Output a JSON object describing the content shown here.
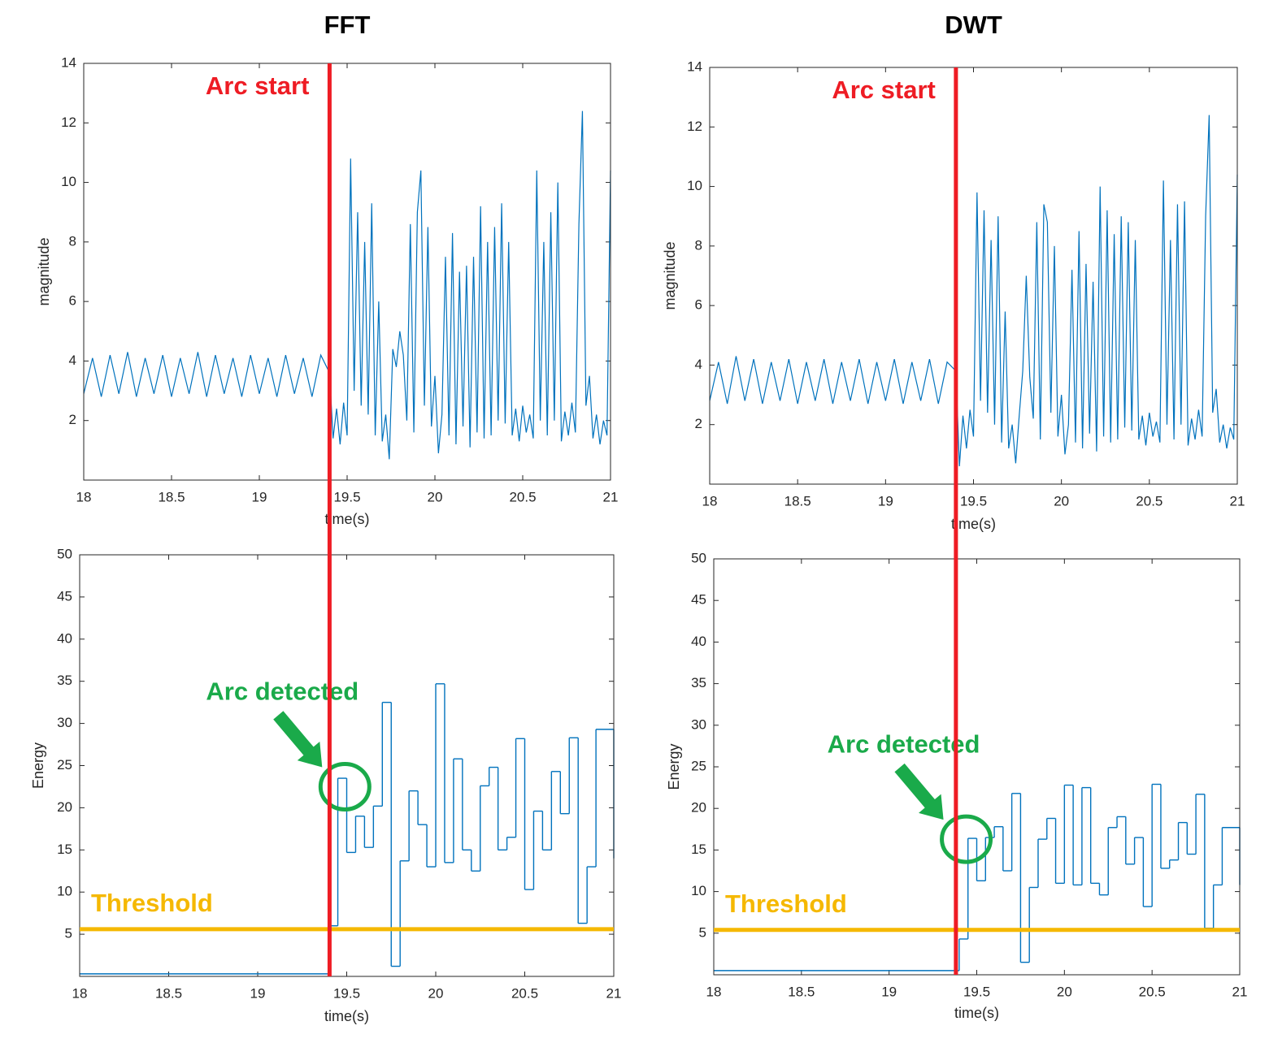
{
  "chart_data": [
    {
      "type": "line",
      "title": "FFT",
      "y_label": "magnitude",
      "x_label": "time(s)",
      "color": "#0072bd",
      "xlim": [
        18,
        21
      ],
      "xticks": [
        18,
        18.5,
        19,
        19.5,
        20,
        20.5,
        21
      ],
      "ylim": [
        0,
        14
      ],
      "yticks": [
        2,
        4,
        6,
        8,
        10,
        12,
        14
      ],
      "arc_start": {
        "label": "Arc start",
        "x": 19.4,
        "color": "#ee1c24"
      },
      "x": [
        18,
        18.05,
        18.1,
        18.15,
        18.2,
        18.25,
        18.3,
        18.35,
        18.4,
        18.45,
        18.5,
        18.55,
        18.6,
        18.65,
        18.7,
        18.75,
        18.8,
        18.85,
        18.9,
        18.95,
        19,
        19.05,
        19.1,
        19.15,
        19.2,
        19.25,
        19.3,
        19.35,
        19.4,
        19.42,
        19.44,
        19.46,
        19.48,
        19.5,
        19.52,
        19.54,
        19.56,
        19.58,
        19.6,
        19.62,
        19.64,
        19.66,
        19.68,
        19.7,
        19.72,
        19.74,
        19.76,
        19.78,
        19.8,
        19.82,
        19.84,
        19.86,
        19.88,
        19.9,
        19.92,
        19.94,
        19.96,
        19.98,
        20,
        20.02,
        20.04,
        20.06,
        20.08,
        20.1,
        20.12,
        20.14,
        20.16,
        20.18,
        20.2,
        20.22,
        20.24,
        20.26,
        20.28,
        20.3,
        20.32,
        20.34,
        20.36,
        20.38,
        20.4,
        20.42,
        20.44,
        20.46,
        20.48,
        20.5,
        20.52,
        20.54,
        20.56,
        20.58,
        20.6,
        20.62,
        20.64,
        20.66,
        20.68,
        20.7,
        20.72,
        20.74,
        20.76,
        20.78,
        20.8,
        20.82,
        20.84,
        20.86,
        20.88,
        20.9,
        20.92,
        20.94,
        20.96,
        20.98,
        21
      ],
      "values": [
        2.9,
        4.1,
        2.8,
        4.2,
        2.9,
        4.3,
        2.8,
        4.1,
        2.9,
        4.2,
        2.8,
        4.1,
        2.9,
        4.3,
        2.8,
        4.2,
        2.9,
        4.1,
        2.8,
        4.2,
        2.9,
        4.1,
        2.8,
        4.2,
        2.9,
        4.1,
        2.8,
        4.2,
        3.6,
        1.4,
        2.4,
        1.2,
        2.6,
        1.5,
        10.8,
        3.0,
        9.0,
        2.5,
        8.0,
        2.2,
        9.3,
        1.5,
        6.0,
        1.3,
        2.2,
        0.7,
        4.4,
        3.8,
        5.0,
        4.2,
        2.0,
        8.6,
        1.6,
        9.0,
        10.4,
        2.5,
        8.5,
        1.8,
        3.5,
        0.9,
        2.2,
        7.5,
        1.5,
        8.3,
        1.2,
        7.0,
        1.8,
        7.2,
        1.1,
        7.5,
        1.6,
        9.2,
        1.4,
        8.0,
        1.5,
        8.5,
        2.0,
        9.3,
        1.9,
        8.0,
        1.5,
        2.4,
        1.3,
        2.5,
        1.6,
        2.2,
        1.4,
        10.4,
        2.0,
        8.0,
        1.5,
        9.0,
        2.0,
        10.0,
        1.3,
        2.3,
        1.5,
        2.6,
        1.6,
        8.6,
        12.4,
        2.5,
        3.5,
        1.4,
        2.2,
        1.2,
        2.0,
        1.5,
        10.4
      ]
    },
    {
      "type": "step",
      "y_label": "Energy",
      "x_label": "time(s)",
      "color": "#0072bd",
      "xlim": [
        18,
        21
      ],
      "xticks": [
        18,
        18.5,
        19,
        19.5,
        20,
        20.5,
        21
      ],
      "ylim": [
        0,
        50
      ],
      "yticks": [
        5,
        10,
        15,
        20,
        25,
        30,
        35,
        40,
        45,
        50
      ],
      "threshold": {
        "label": "Threshold",
        "value": 5.6,
        "color": "#f5b800"
      },
      "arc_detected": {
        "label": "Arc detected",
        "x": 19.49,
        "y": 22.5,
        "color": "#1aaa4a"
      },
      "x": [
        18,
        19.4,
        19.45,
        19.5,
        19.55,
        19.6,
        19.65,
        19.7,
        19.75,
        19.8,
        19.85,
        19.9,
        19.95,
        20,
        20.05,
        20.1,
        20.15,
        20.2,
        20.25,
        20.3,
        20.35,
        20.4,
        20.45,
        20.5,
        20.55,
        20.6,
        20.65,
        20.7,
        20.75,
        20.8,
        20.85,
        20.9,
        21
      ],
      "values": [
        0.3,
        6,
        23.5,
        14.7,
        19,
        15.3,
        20.2,
        32.5,
        1.2,
        13.7,
        22,
        18,
        13,
        34.7,
        13.5,
        25.8,
        15,
        12.5,
        22.6,
        24.8,
        15,
        16.5,
        28.2,
        10.3,
        19.6,
        15,
        24.3,
        19.3,
        28.3,
        6.3,
        13,
        29.3,
        14
      ]
    },
    {
      "type": "line",
      "title": "DWT",
      "y_label": "magnitude",
      "x_label": "time(s)",
      "color": "#0072bd",
      "xlim": [
        18,
        21
      ],
      "xticks": [
        18,
        18.5,
        19,
        19.5,
        20,
        20.5,
        21
      ],
      "ylim": [
        0,
        14
      ],
      "yticks": [
        2,
        4,
        6,
        8,
        10,
        12,
        14
      ],
      "arc_start": {
        "label": "Arc start",
        "x": 19.4,
        "color": "#ee1c24"
      },
      "x": [
        18,
        18.05,
        18.1,
        18.15,
        18.2,
        18.25,
        18.3,
        18.35,
        18.4,
        18.45,
        18.5,
        18.55,
        18.6,
        18.65,
        18.7,
        18.75,
        18.8,
        18.85,
        18.9,
        18.95,
        19,
        19.05,
        19.1,
        19.15,
        19.2,
        19.25,
        19.3,
        19.35,
        19.4,
        19.42,
        19.44,
        19.46,
        19.48,
        19.5,
        19.52,
        19.54,
        19.56,
        19.58,
        19.6,
        19.62,
        19.64,
        19.66,
        19.68,
        19.7,
        19.72,
        19.74,
        19.76,
        19.78,
        19.8,
        19.82,
        19.84,
        19.86,
        19.88,
        19.9,
        19.92,
        19.94,
        19.96,
        19.98,
        20,
        20.02,
        20.04,
        20.06,
        20.08,
        20.1,
        20.12,
        20.14,
        20.16,
        20.18,
        20.2,
        20.22,
        20.24,
        20.26,
        20.28,
        20.3,
        20.32,
        20.34,
        20.36,
        20.38,
        20.4,
        20.42,
        20.44,
        20.46,
        20.48,
        20.5,
        20.52,
        20.54,
        20.56,
        20.58,
        20.6,
        20.62,
        20.64,
        20.66,
        20.68,
        20.7,
        20.72,
        20.74,
        20.76,
        20.78,
        20.8,
        20.82,
        20.84,
        20.86,
        20.88,
        20.9,
        20.92,
        20.94,
        20.96,
        20.98,
        21
      ],
      "values": [
        2.8,
        4.1,
        2.7,
        4.3,
        2.8,
        4.2,
        2.7,
        4.1,
        2.8,
        4.2,
        2.7,
        4.1,
        2.8,
        4.2,
        2.7,
        4.1,
        2.8,
        4.2,
        2.7,
        4.1,
        2.8,
        4.2,
        2.7,
        4.1,
        2.8,
        4.2,
        2.7,
        4.1,
        3.8,
        0.6,
        2.3,
        1.2,
        2.5,
        1.6,
        9.8,
        2.8,
        9.2,
        2.4,
        8.2,
        2.0,
        9.0,
        1.4,
        5.8,
        1.2,
        2.0,
        0.7,
        2.3,
        3.8,
        7.0,
        3.6,
        2.2,
        8.8,
        1.5,
        9.4,
        8.8,
        2.4,
        8.0,
        1.6,
        3.0,
        1.0,
        2.0,
        7.2,
        1.4,
        8.5,
        1.2,
        7.4,
        1.7,
        6.8,
        1.1,
        10.0,
        1.6,
        9.2,
        1.4,
        8.4,
        1.5,
        9.0,
        1.9,
        8.8,
        1.8,
        8.2,
        1.5,
        2.3,
        1.3,
        2.4,
        1.6,
        2.1,
        1.4,
        10.2,
        2.0,
        8.2,
        1.5,
        9.4,
        2.0,
        9.5,
        1.3,
        2.2,
        1.5,
        2.5,
        1.6,
        9.0,
        12.4,
        2.4,
        3.2,
        1.4,
        2.0,
        1.2,
        1.9,
        1.5,
        10.4
      ]
    },
    {
      "type": "step",
      "y_label": "Energy",
      "x_label": "time(s)",
      "color": "#0072bd",
      "xlim": [
        18,
        21
      ],
      "xticks": [
        18,
        18.5,
        19,
        19.5,
        20,
        20.5,
        21
      ],
      "ylim": [
        0,
        50
      ],
      "yticks": [
        5,
        10,
        15,
        20,
        25,
        30,
        35,
        40,
        45,
        50
      ],
      "threshold": {
        "label": "Threshold",
        "value": 5.4,
        "color": "#f5b800"
      },
      "arc_detected": {
        "label": "Arc detected",
        "x": 19.44,
        "y": 16.3,
        "color": "#1aaa4a"
      },
      "x": [
        18,
        19.4,
        19.45,
        19.5,
        19.55,
        19.6,
        19.65,
        19.7,
        19.75,
        19.8,
        19.85,
        19.9,
        19.95,
        20,
        20.05,
        20.1,
        20.15,
        20.2,
        20.25,
        20.3,
        20.35,
        20.4,
        20.45,
        20.5,
        20.55,
        20.6,
        20.65,
        20.7,
        20.75,
        20.8,
        20.85,
        20.9,
        21
      ],
      "values": [
        0.5,
        4.3,
        16.4,
        11.3,
        16.5,
        17.8,
        12.5,
        21.8,
        1.5,
        10.5,
        16.3,
        18.8,
        11,
        22.8,
        10.8,
        22.5,
        11,
        9.6,
        17.7,
        19,
        13.3,
        16.5,
        8.2,
        22.9,
        12.8,
        13.8,
        18.3,
        14.5,
        21.7,
        5.6,
        10.8,
        17.7,
        10.8
      ]
    }
  ]
}
